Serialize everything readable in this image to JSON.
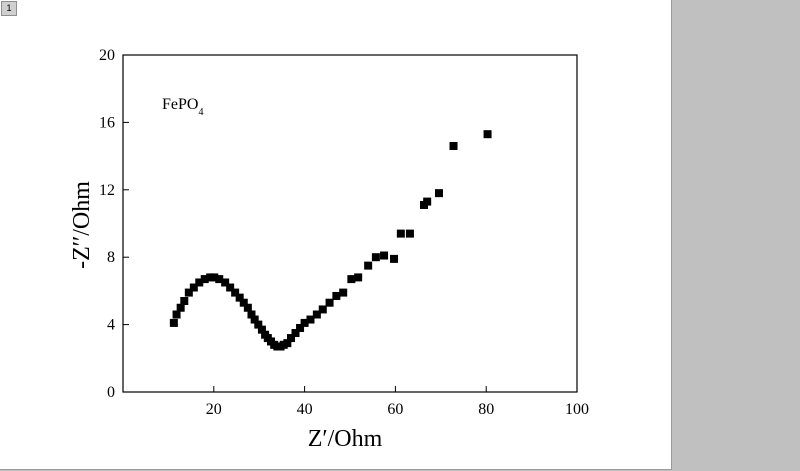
{
  "page": {
    "number": "1"
  },
  "chart_data": {
    "type": "scatter",
    "xlabel": "Z′/Ohm",
    "ylabel": "-Z′′/Ohm",
    "xlim": [
      0,
      100
    ],
    "ylim": [
      0,
      20
    ],
    "xticks": [
      20,
      40,
      60,
      80,
      100
    ],
    "yticks": [
      0,
      4,
      8,
      12,
      16,
      20
    ],
    "grid": false,
    "legend": "none",
    "marker": "square",
    "color": "#000000",
    "annotation": {
      "text": "FePO",
      "subscript": "4"
    },
    "series": [
      {
        "x": [
          11.2,
          11.8,
          12.7,
          13.5,
          14.5,
          15.6,
          16.8,
          18.0,
          19.2,
          20.1,
          21.2,
          22.5,
          23.6,
          24.7,
          25.7,
          26.6,
          27.5,
          28.3,
          29.0,
          29.8,
          30.6,
          31.3,
          31.9,
          32.6,
          33.3,
          34.0,
          34.7,
          35.4,
          36.2,
          37.0,
          38.0,
          39.0,
          40.0,
          41.3,
          42.7,
          44.0,
          45.5,
          47.0,
          48.5,
          50.3,
          51.8,
          54.0,
          55.7,
          57.5,
          59.7,
          61.2,
          63.2,
          66.3,
          67.0,
          69.6,
          72.8,
          80.3
        ],
        "y": [
          4.1,
          4.6,
          5.0,
          5.4,
          5.9,
          6.2,
          6.5,
          6.7,
          6.8,
          6.8,
          6.7,
          6.5,
          6.2,
          5.9,
          5.6,
          5.3,
          5.0,
          4.6,
          4.3,
          4.0,
          3.7,
          3.4,
          3.2,
          3.0,
          2.8,
          2.7,
          2.7,
          2.8,
          2.9,
          3.2,
          3.5,
          3.8,
          4.1,
          4.3,
          4.6,
          4.9,
          5.3,
          5.7,
          5.9,
          6.7,
          6.8,
          7.5,
          8.0,
          8.1,
          7.9,
          9.4,
          9.4,
          11.1,
          11.3,
          11.8,
          14.6,
          15.3
        ]
      }
    ]
  }
}
